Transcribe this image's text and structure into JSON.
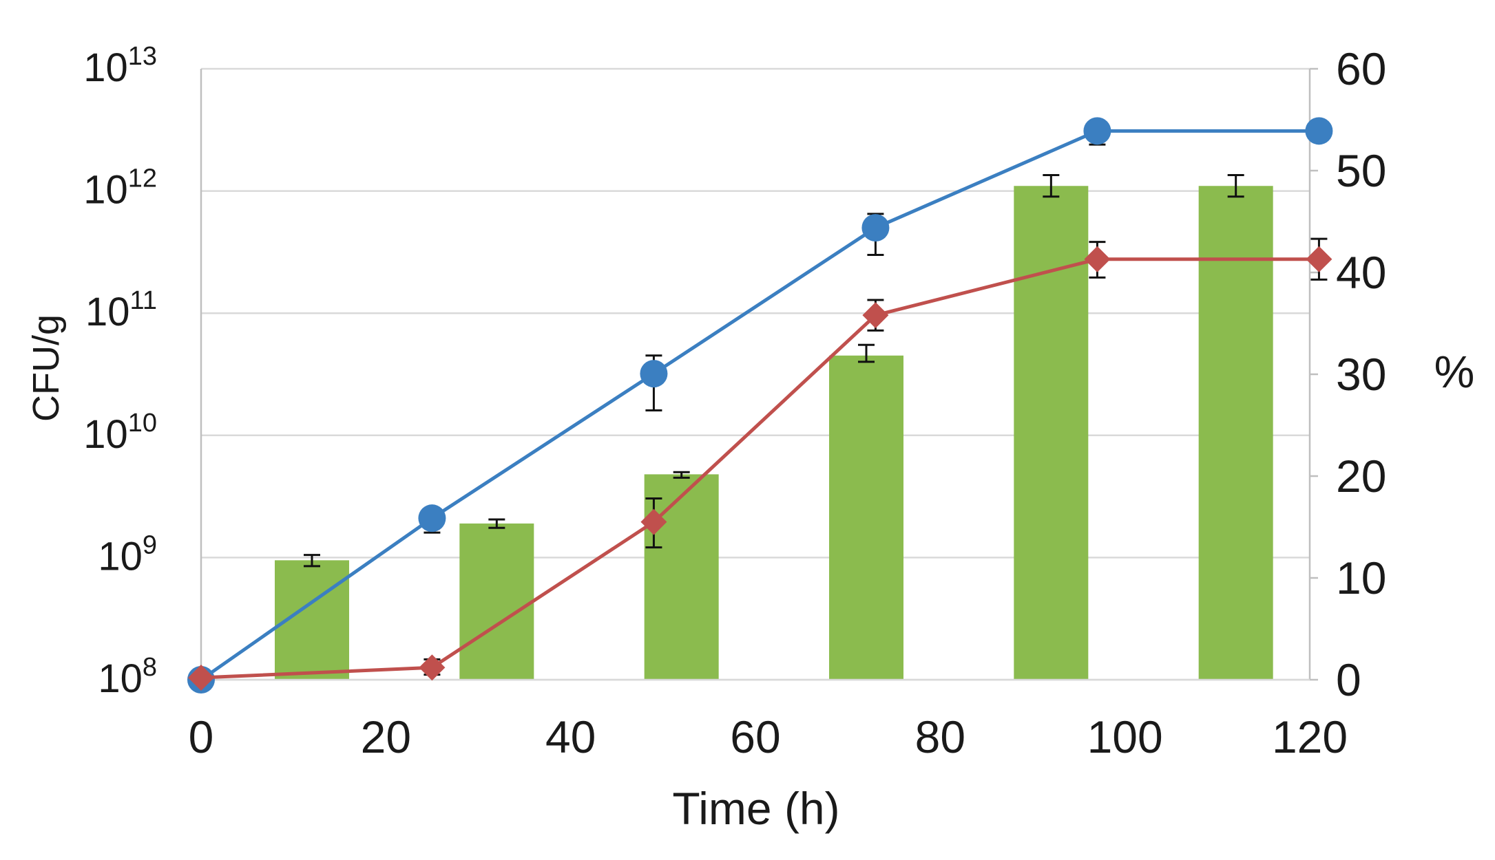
{
  "chart_data": {
    "type": "bar+line",
    "title": "",
    "xlabel": "Time (h)",
    "ylabel_left": "CFU/g",
    "ylabel_right": "%",
    "x_ticks": [
      "0",
      "20",
      "40",
      "60",
      "80",
      "100",
      "120"
    ],
    "xlim": [
      0,
      120
    ],
    "y_left": {
      "scale": "log10",
      "lim": [
        100000000,
        10000000000000
      ],
      "ticks": [
        {
          "base": "10",
          "exp": "8"
        },
        {
          "base": "10",
          "exp": "9"
        },
        {
          "base": "10",
          "exp": "10"
        },
        {
          "base": "10",
          "exp": "11"
        },
        {
          "base": "10",
          "exp": "12"
        },
        {
          "base": "10",
          "exp": "13"
        }
      ]
    },
    "y_right": {
      "lim": [
        0,
        60
      ],
      "ticks": [
        "0",
        "10",
        "20",
        "30",
        "40",
        "50",
        "60"
      ]
    },
    "grid": true,
    "series": [
      {
        "name": "bars",
        "kind": "bar",
        "axis": "left",
        "color": "#8bbb4e",
        "x": [
          12,
          32,
          52,
          72,
          92,
          112
        ],
        "values": [
          950000000,
          1900000000,
          4800000000,
          45000000000,
          1100000000000,
          1100000000000
        ],
        "err_low": [
          850000000,
          1750000000,
          4500000000,
          40000000000,
          900000000000,
          900000000000
        ],
        "err_high": [
          1050000000,
          2050000000,
          5000000000,
          55000000000,
          1350000000000,
          1350000000000
        ]
      },
      {
        "name": "blue line",
        "kind": "line",
        "marker": "circle",
        "axis": "left",
        "color": "#3b7fc1",
        "x": [
          0,
          25,
          49,
          73,
          97,
          121
        ],
        "values": [
          100000000,
          2100000000,
          32000000000,
          500000000000,
          3100000000000,
          3100000000000
        ],
        "err_low": [
          100000000,
          1600000000,
          16000000000,
          300000000000,
          2400000000000,
          3100000000000
        ],
        "err_high": [
          100000000,
          2500000000,
          45000000000,
          650000000000,
          3500000000000,
          3100000000000
        ]
      },
      {
        "name": "red line",
        "kind": "line",
        "marker": "diamond",
        "axis": "right",
        "color": "#c0504d",
        "x": [
          0,
          25,
          49,
          73,
          97,
          121
        ],
        "values": [
          0.2,
          1.2,
          15.5,
          35.8,
          41.3,
          41.3
        ],
        "err_low": [
          0.2,
          0.5,
          13.0,
          34.3,
          39.5,
          39.3
        ],
        "err_high": [
          0.2,
          2.0,
          17.8,
          37.3,
          43.0,
          43.3
        ]
      }
    ]
  }
}
